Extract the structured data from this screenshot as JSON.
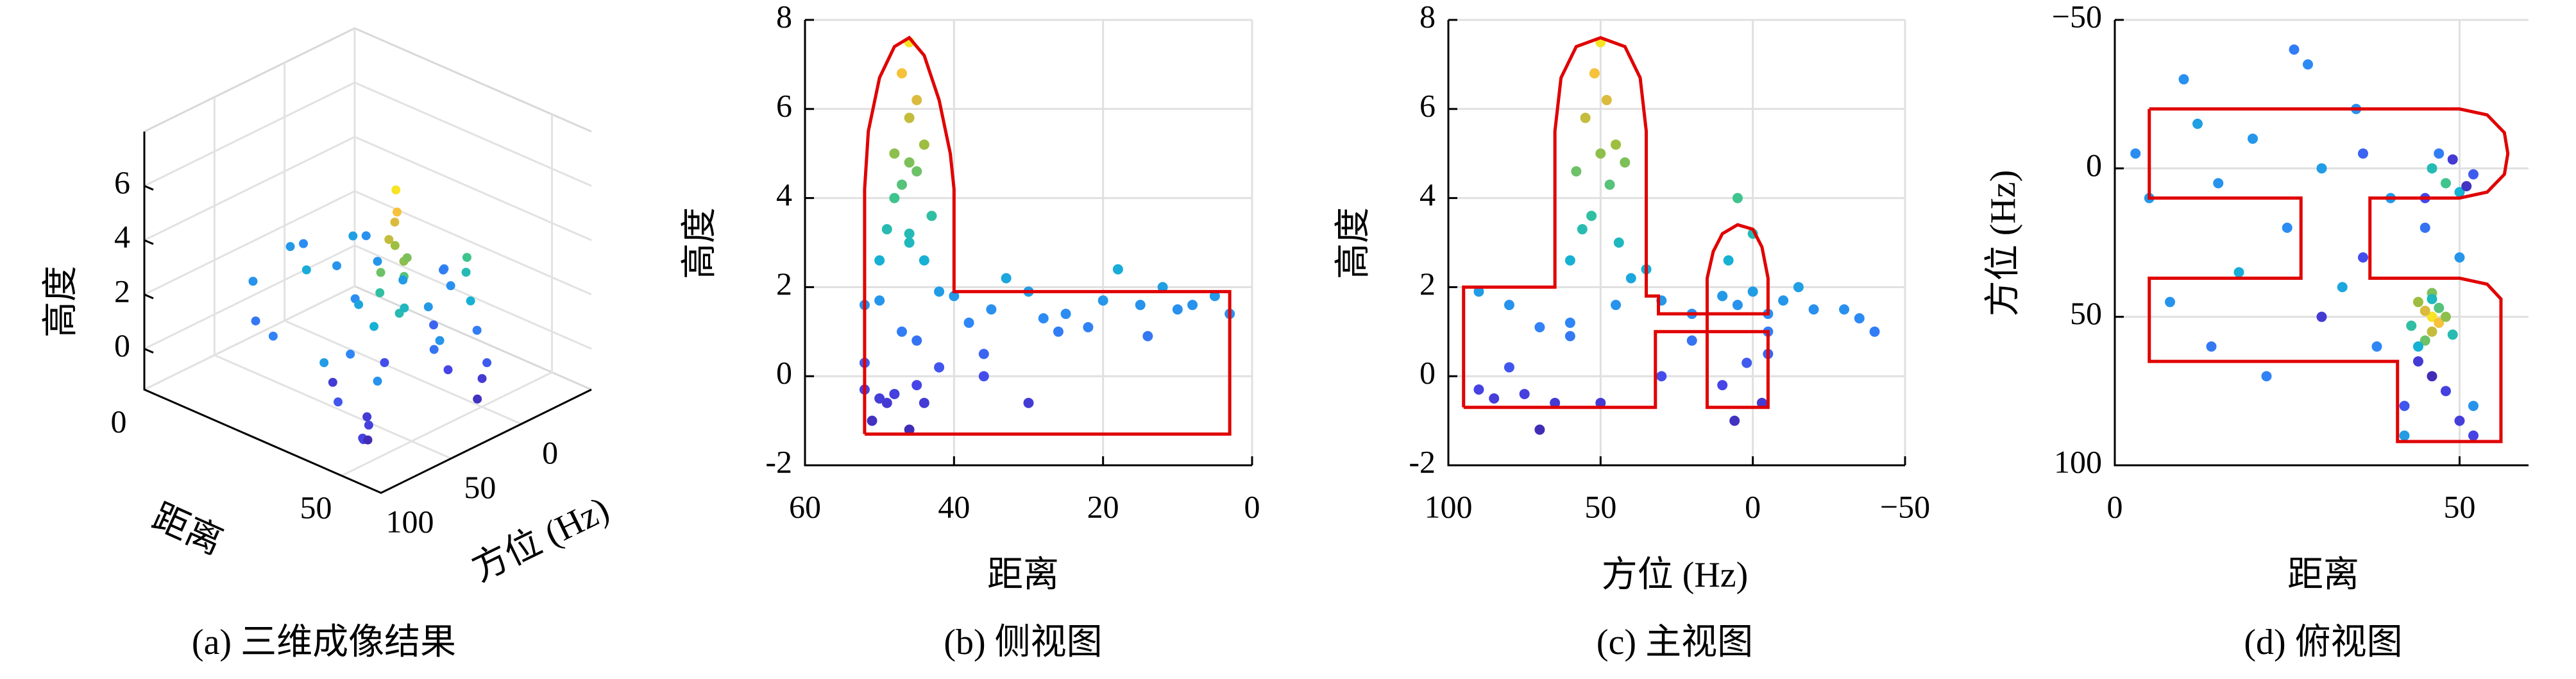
{
  "chart_data": [
    {
      "type": "scatter3d",
      "caption": "(a) 三维成像结果",
      "xlabel": "距离",
      "ylabel": "方位 (Hz)",
      "zlabel": "高度",
      "x": [
        46,
        47,
        45,
        46,
        44,
        48,
        46,
        45,
        47,
        43,
        49,
        46,
        44,
        52,
        50,
        40,
        35,
        30,
        25,
        20,
        15,
        10,
        5,
        3,
        38,
        42,
        33,
        28,
        18,
        12,
        22,
        8,
        45,
        36,
        48,
        46,
        50,
        47,
        52,
        45,
        49,
        51,
        50,
        48,
        44,
        52,
        46,
        42,
        36,
        30,
        26,
        14
      ],
      "y": [
        50,
        52,
        48,
        55,
        45,
        50,
        42,
        58,
        47,
        53,
        56,
        44,
        60,
        80,
        30,
        10,
        -20,
        0,
        20,
        -10,
        5,
        -30,
        10,
        -5,
        60,
        90,
        40,
        -35,
        35,
        -15,
        70,
        45,
        20,
        -5,
        5,
        0,
        8,
        -5,
        2,
        10,
        -3,
        6,
        85,
        75,
        65,
        90,
        70,
        80,
        30,
        50,
        -40,
        60
      ],
      "z": [
        7.5,
        6.8,
        6.2,
        5.8,
        5.2,
        5.0,
        4.8,
        4.6,
        4.3,
        3.6,
        3.3,
        3.0,
        2.6,
        1.6,
        1.7,
        1.8,
        1.5,
        1.9,
        1.4,
        1.7,
        1.6,
        1.5,
        1.8,
        1.4,
        1.2,
        1.9,
        2.2,
        1.3,
        2.4,
        2.0,
        1.1,
        1.6,
        0.8,
        0.5,
        4.0,
        3.2,
        2.6,
        1.0,
        0.3,
        -0.2,
        -0.6,
        -1.0,
        -0.5,
        -0.4,
        -0.6,
        -0.3,
        -1.2,
        0.2,
        0.0,
        -0.6,
        1.0,
        0.9
      ],
      "xlim": [
        0,
        60
      ],
      "ylim": [
        100,
        -50
      ],
      "zlim": [
        -1.5,
        8
      ],
      "xticks": [
        0,
        50
      ],
      "yticks": [
        0,
        50,
        100
      ],
      "zticks": [
        0,
        2,
        4,
        6
      ],
      "grid": true,
      "colormap": [
        "#3e26a8",
        "#4746eb",
        "#2e87f7",
        "#15b1d4",
        "#38c492",
        "#a4be3a",
        "#f5ba3f",
        "#f9fb15"
      ],
      "clim": [
        -1.5,
        8
      ]
    },
    {
      "type": "scatter",
      "caption": "(b) 侧视图",
      "xlabel": "距离",
      "ylabel": "高度",
      "x": [
        46,
        47,
        45,
        46,
        44,
        48,
        46,
        45,
        47,
        43,
        49,
        46,
        44,
        52,
        50,
        40,
        35,
        30,
        25,
        20,
        15,
        10,
        5,
        3,
        38,
        42,
        33,
        28,
        18,
        12,
        22,
        8,
        45,
        36,
        48,
        46,
        50,
        47,
        52,
        45,
        49,
        51,
        50,
        48,
        44,
        52,
        46,
        42,
        36,
        30,
        26,
        14
      ],
      "y": [
        7.5,
        6.8,
        6.2,
        5.8,
        5.2,
        5.0,
        4.8,
        4.6,
        4.3,
        3.6,
        3.3,
        3.0,
        2.6,
        1.6,
        1.7,
        1.8,
        1.5,
        1.9,
        1.4,
        1.7,
        1.6,
        1.5,
        1.8,
        1.4,
        1.2,
        1.9,
        2.2,
        1.3,
        2.4,
        2.0,
        1.1,
        1.6,
        0.8,
        0.5,
        4.0,
        3.2,
        2.6,
        1.0,
        0.3,
        -0.2,
        -0.6,
        -1.0,
        -0.5,
        -0.4,
        -0.6,
        -0.3,
        -1.2,
        0.2,
        0.0,
        -0.6,
        1.0,
        0.9
      ],
      "xlim": [
        60,
        0
      ],
      "ylim": [
        -2,
        8
      ],
      "xticks": [
        60,
        40,
        20,
        0
      ],
      "yticks": [
        -2,
        0,
        2,
        4,
        6,
        8
      ],
      "grid": true,
      "colormap": [
        "#3e26a8",
        "#4746eb",
        "#2e87f7",
        "#15b1d4",
        "#38c492",
        "#a4be3a",
        "#f5ba3f",
        "#f9fb15"
      ],
      "clim": [
        -1.5,
        8
      ],
      "outline": {
        "color": "#e00000",
        "x": [
          52,
          52,
          51.5,
          50,
          48,
          46,
          44,
          42,
          40.5,
          40,
          40,
          3,
          3,
          52
        ],
        "y": [
          -1.3,
          4.2,
          5.5,
          6.7,
          7.4,
          7.6,
          7.2,
          6.2,
          5.0,
          4.2,
          1.9,
          1.9,
          -1.3,
          -1.3
        ]
      }
    },
    {
      "type": "scatter",
      "caption": "(c) 主视图",
      "xlabel": "方位 (Hz)",
      "ylabel": "高度",
      "x": [
        50,
        52,
        48,
        55,
        45,
        50,
        42,
        58,
        47,
        53,
        56,
        44,
        60,
        80,
        30,
        10,
        -20,
        0,
        20,
        -10,
        5,
        -30,
        10,
        -5,
        60,
        90,
        40,
        -35,
        35,
        -15,
        70,
        45,
        20,
        -5,
        5,
        0,
        8,
        -5,
        2,
        10,
        -3,
        6,
        85,
        75,
        65,
        90,
        70,
        80,
        30,
        50,
        -40,
        60
      ],
      "y": [
        7.5,
        6.8,
        6.2,
        5.8,
        5.2,
        5.0,
        4.8,
        4.6,
        4.3,
        3.6,
        3.3,
        3.0,
        2.6,
        1.6,
        1.7,
        1.8,
        1.5,
        1.9,
        1.4,
        1.7,
        1.6,
        1.5,
        1.8,
        1.4,
        1.2,
        1.9,
        2.2,
        1.3,
        2.4,
        2.0,
        1.1,
        1.6,
        0.8,
        0.5,
        4.0,
        3.2,
        2.6,
        1.0,
        0.3,
        -0.2,
        -0.6,
        -1.0,
        -0.5,
        -0.4,
        -0.6,
        -0.3,
        -1.2,
        0.2,
        0.0,
        -0.6,
        1.0,
        0.9
      ],
      "xlim": [
        100,
        -50
      ],
      "ylim": [
        -2,
        8
      ],
      "xticks": [
        100,
        50,
        0,
        {
          "value": -50,
          "label": "−50"
        }
      ],
      "yticks": [
        -2,
        0,
        2,
        4,
        6,
        8
      ],
      "grid": true,
      "colormap": [
        "#3e26a8",
        "#4746eb",
        "#2e87f7",
        "#15b1d4",
        "#38c492",
        "#a4be3a",
        "#f5ba3f",
        "#f9fb15"
      ],
      "clim": [
        -1.5,
        8
      ],
      "outline": {
        "color": "#e00000",
        "x": [
          95,
          95,
          65,
          65,
          63,
          58,
          50,
          42,
          37,
          35,
          35,
          31,
          31,
          -5,
          -5,
          -3,
          0,
          5,
          10,
          13,
          15,
          15,
          -5,
          -5,
          32,
          32,
          95
        ],
        "y": [
          -0.7,
          2.0,
          2.0,
          5.5,
          6.7,
          7.4,
          7.6,
          7.4,
          6.7,
          5.5,
          1.8,
          1.8,
          1.4,
          1.4,
          2.2,
          2.9,
          3.3,
          3.4,
          3.2,
          2.8,
          2.2,
          -0.7,
          -0.7,
          1.0,
          1.0,
          -0.7,
          -0.7
        ]
      }
    },
    {
      "type": "scatter",
      "caption": "(d) 俯视图",
      "xlabel": "距离",
      "ylabel": "方位 (Hz)",
      "x": [
        46,
        47,
        45,
        46,
        44,
        48,
        46,
        45,
        47,
        43,
        49,
        46,
        44,
        52,
        50,
        40,
        35,
        30,
        25,
        20,
        15,
        10,
        5,
        3,
        38,
        42,
        33,
        28,
        18,
        12,
        22,
        8,
        45,
        36,
        48,
        46,
        50,
        47,
        52,
        45,
        49,
        51,
        50,
        48,
        44,
        52,
        46,
        42,
        36,
        30,
        26,
        14
      ],
      "y": [
        50,
        52,
        48,
        55,
        45,
        50,
        42,
        58,
        47,
        53,
        56,
        44,
        60,
        80,
        30,
        10,
        -20,
        0,
        20,
        -10,
        5,
        -30,
        10,
        -5,
        60,
        90,
        40,
        -35,
        35,
        -15,
        70,
        45,
        20,
        -5,
        5,
        0,
        8,
        -5,
        2,
        10,
        -3,
        6,
        85,
        75,
        65,
        90,
        70,
        80,
        30,
        50,
        -40,
        60
      ],
      "c": [
        7.5,
        6.8,
        6.2,
        5.8,
        5.2,
        5.0,
        4.8,
        4.6,
        4.3,
        3.6,
        3.3,
        3.0,
        2.6,
        1.6,
        1.7,
        1.8,
        1.5,
        1.9,
        1.4,
        1.7,
        1.6,
        1.5,
        1.8,
        1.4,
        1.2,
        1.9,
        2.2,
        1.3,
        2.4,
        2.0,
        1.1,
        1.6,
        0.8,
        0.5,
        4.0,
        3.2,
        2.6,
        1.0,
        0.3,
        -0.2,
        -0.6,
        -1.0,
        -0.5,
        -0.4,
        -0.6,
        -0.3,
        -1.2,
        0.2,
        0.0,
        -0.6,
        1.0,
        0.9
      ],
      "xlim": [
        0,
        60
      ],
      "ylim": [
        100,
        -50
      ],
      "xticks": [
        0,
        50
      ],
      "yticks": [
        {
          "value": -50,
          "label": "−50"
        },
        0,
        50,
        100
      ],
      "grid": true,
      "colormap": [
        "#3e26a8",
        "#4746eb",
        "#2e87f7",
        "#15b1d4",
        "#38c492",
        "#a4be3a",
        "#f5ba3f",
        "#f9fb15"
      ],
      "clim": [
        -1.5,
        8
      ],
      "outline": {
        "color": "#e00000",
        "x": [
          5,
          50,
          54,
          56.5,
          57,
          56.5,
          54,
          50,
          37,
          37,
          50,
          54,
          56,
          56,
          56,
          41,
          41,
          5,
          5,
          27,
          27,
          5,
          5
        ],
        "y": [
          -20,
          -20,
          -18,
          -12,
          -5,
          2,
          8,
          10,
          10,
          37,
          37,
          39,
          44,
          50,
          92,
          92,
          65,
          65,
          37,
          37,
          10,
          10,
          -20
        ]
      }
    }
  ]
}
